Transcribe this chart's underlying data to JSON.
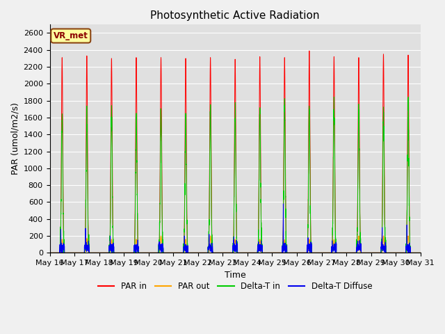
{
  "title": "Photosynthetic Active Radiation",
  "xlabel": "Time",
  "ylabel": "PAR (umol/m2/s)",
  "ylim": [
    0,
    2700
  ],
  "yticks": [
    0,
    200,
    400,
    600,
    800,
    1000,
    1200,
    1400,
    1600,
    1800,
    2000,
    2200,
    2400,
    2600
  ],
  "x_tick_labels": [
    "May 16",
    "May 17",
    "May 18",
    "May 19",
    "May 20",
    "May 21",
    "May 22",
    "May 23",
    "May 24",
    "May 25",
    "May 26",
    "May 27",
    "May 28",
    "May 29",
    "May 30",
    "May 31"
  ],
  "legend_label": "VR_met",
  "line_labels": [
    "PAR in",
    "PAR out",
    "Delta-T in",
    "Delta-T Diffuse"
  ],
  "line_colors": [
    "#ff0000",
    "#ffa500",
    "#00cc00",
    "#0000ee"
  ],
  "days": 15,
  "pts_per_day": 288,
  "par_in_peaks": [
    2310,
    2330,
    2300,
    2310,
    2310,
    2300,
    2310,
    2290,
    2320,
    2310,
    2390,
    2320,
    2310,
    2350,
    2340
  ],
  "par_out_peaks": [
    160,
    170,
    160,
    160,
    200,
    160,
    200,
    160,
    160,
    155,
    160,
    155,
    200,
    200,
    200
  ],
  "delta_t_in_peaks": [
    1700,
    1620,
    1670,
    1640,
    1680,
    1580,
    1690,
    1700,
    1700,
    1750,
    1720,
    1730,
    1680,
    1680,
    1700
  ],
  "delta_t_diff_peaks": [
    280,
    290,
    200,
    100,
    130,
    200,
    220,
    190,
    130,
    580,
    180,
    90,
    105,
    300,
    330
  ],
  "bg_color": "#f0f0f0",
  "plot_bg_color": "#e0e0e0",
  "title_fontsize": 11,
  "axis_fontsize": 9,
  "tick_fontsize": 8
}
